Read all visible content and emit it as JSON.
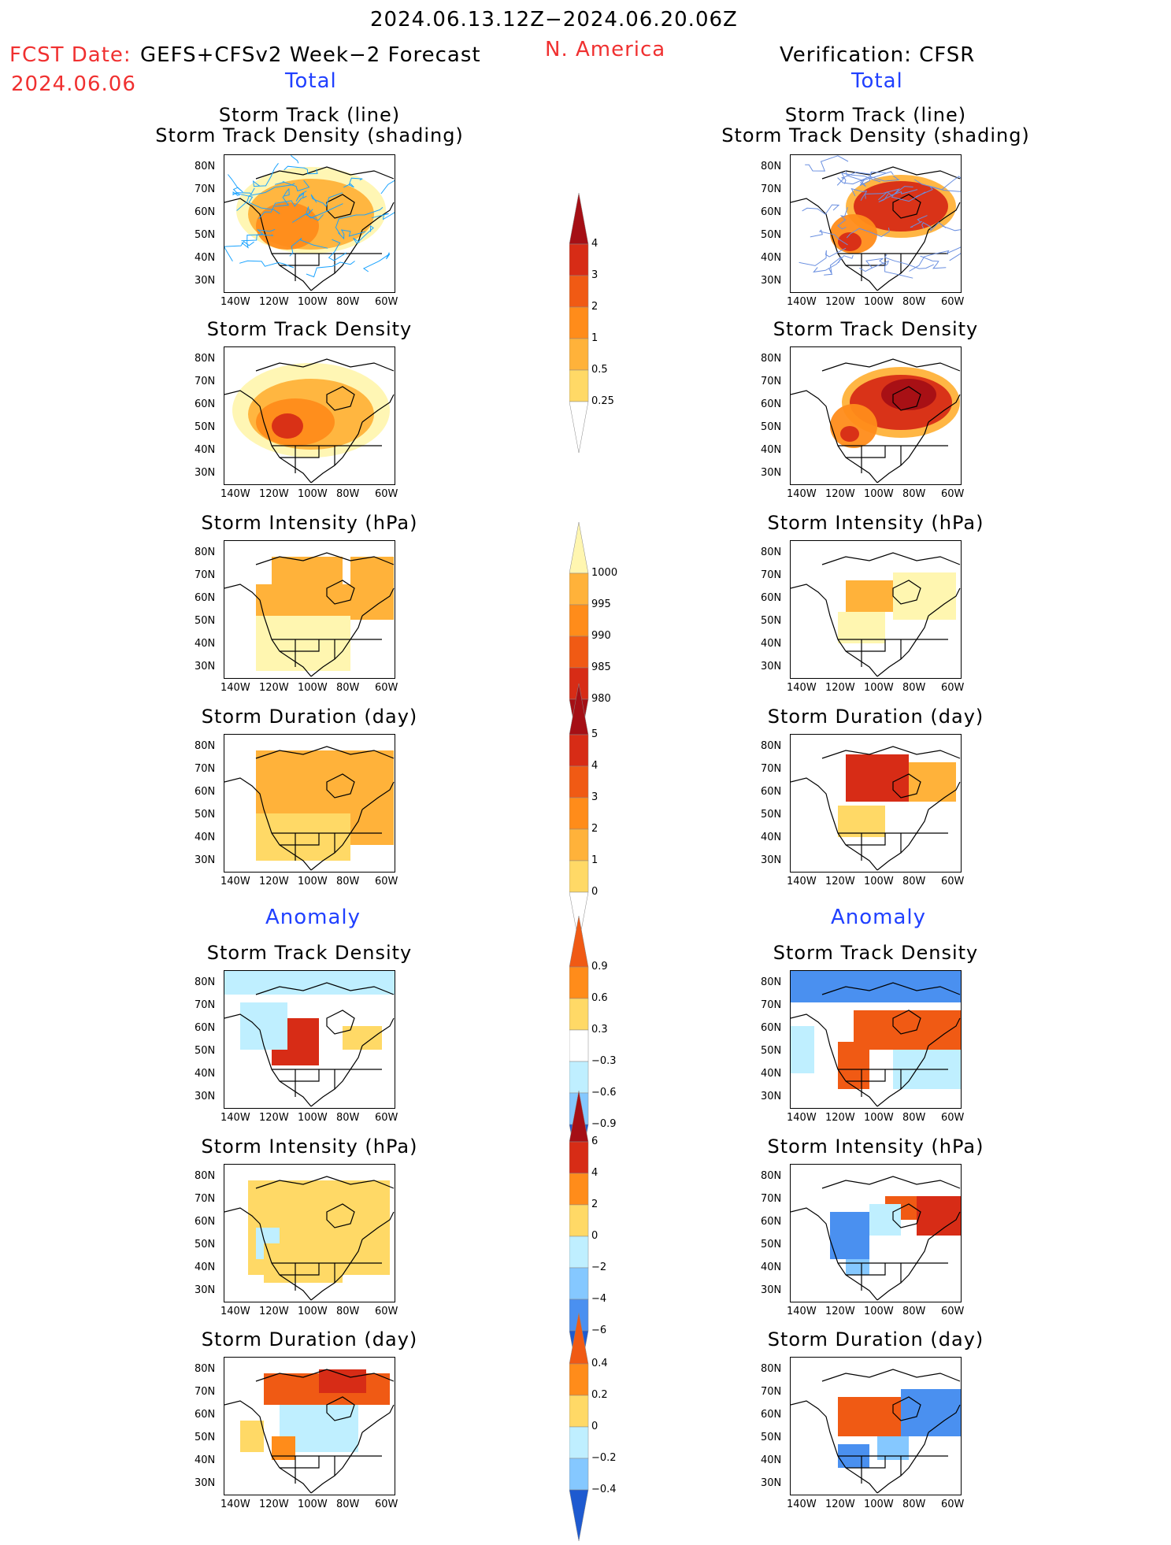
{
  "header": {
    "period": "2024.06.13.12Z−2024.06.20.06Z",
    "fcst_label": "FCST Date:",
    "model": "GEFS+CFSv2 Week−2 Forecast",
    "fcst_date": "2024.06.06",
    "region": "N. America",
    "verification": "Verification: CFSR"
  },
  "sections": {
    "total_left": "Total",
    "total_right": "Total",
    "anomaly_left": "Anomaly",
    "anomaly_right": "Anomaly"
  },
  "axes": {
    "lat_ticks": [
      "80N",
      "70N",
      "60N",
      "50N",
      "40N",
      "30N"
    ],
    "lon_ticks": [
      "140W",
      "120W",
      "100W",
      "80W",
      "60W"
    ]
  },
  "panel_titles": {
    "track_line": "Storm Track (line)",
    "track_density_shading": "Storm Track Density (shading)",
    "track_density": "Storm Track Density",
    "intensity": "Storm Intensity (hPa)",
    "duration": "Storm Duration (day)"
  },
  "colors": {
    "yellow_light": "#fff6b0",
    "yellow": "#ffd966",
    "orange_light": "#ffb23a",
    "orange": "#ff8c1a",
    "orange_red": "#f05a14",
    "red": "#d72c16",
    "dark_red": "#a50f15",
    "blue_light": "#bfefff",
    "blue_mid": "#85c8ff",
    "blue": "#4a90f0",
    "blue_dark": "#1e5ad0",
    "track_line": "#1aa3ff"
  },
  "chart_data": [
    {
      "type": "heatmap",
      "title": "Storm Track (line) / Storm Track Density (shading)",
      "panel": "forecast-total-track-line",
      "colorbar": [
        "0.25",
        "0.5",
        "1",
        "2",
        "3",
        "4"
      ]
    },
    {
      "type": "heatmap",
      "title": "Storm Track (line) / Storm Track Density (shading)",
      "panel": "verification-total-track-line"
    },
    {
      "type": "heatmap",
      "title": "Storm Track Density",
      "panel": "forecast-total-density"
    },
    {
      "type": "heatmap",
      "title": "Storm Track Density",
      "panel": "verification-total-density"
    },
    {
      "type": "heatmap",
      "title": "Storm Intensity (hPa)",
      "panel": "forecast-total-intensity",
      "colorbar": [
        "1000",
        "995",
        "990",
        "985",
        "980"
      ]
    },
    {
      "type": "heatmap",
      "title": "Storm Intensity (hPa)",
      "panel": "verification-total-intensity"
    },
    {
      "type": "heatmap",
      "title": "Storm Duration (day)",
      "panel": "forecast-total-duration",
      "colorbar": [
        "0",
        "1",
        "2",
        "3",
        "4",
        "5"
      ]
    },
    {
      "type": "heatmap",
      "title": "Storm Duration (day)",
      "panel": "verification-total-duration"
    },
    {
      "type": "heatmap",
      "title": "Storm Track Density",
      "panel": "forecast-anomaly-density",
      "colorbar": [
        "−0.9",
        "−0.6",
        "−0.3",
        "0.3",
        "0.6",
        "0.9"
      ]
    },
    {
      "type": "heatmap",
      "title": "Storm Track Density",
      "panel": "verification-anomaly-density"
    },
    {
      "type": "heatmap",
      "title": "Storm Intensity (hPa)",
      "panel": "forecast-anomaly-intensity",
      "colorbar": [
        "−6",
        "−4",
        "−2",
        "0",
        "2",
        "4",
        "6"
      ]
    },
    {
      "type": "heatmap",
      "title": "Storm Intensity (hPa)",
      "panel": "verification-anomaly-intensity"
    },
    {
      "type": "heatmap",
      "title": "Storm Duration (day)",
      "panel": "forecast-anomaly-duration",
      "colorbar": [
        "−0.4",
        "−0.2",
        "0",
        "0.2",
        "0.4"
      ]
    },
    {
      "type": "heatmap",
      "title": "Storm Duration (day)",
      "panel": "verification-anomaly-duration"
    }
  ],
  "colorbars": {
    "density": [
      "4",
      "3",
      "2",
      "1",
      "0.5",
      "0.25"
    ],
    "intensity": [
      "1000",
      "995",
      "990",
      "985",
      "980"
    ],
    "duration": [
      "5",
      "4",
      "3",
      "2",
      "1",
      "0"
    ],
    "anom_density": [
      "0.9",
      "0.6",
      "0.3",
      "−0.3",
      "−0.6",
      "−0.9"
    ],
    "anom_intensity": [
      "6",
      "4",
      "2",
      "0",
      "−2",
      "−4",
      "−6"
    ],
    "anom_duration": [
      "0.4",
      "0.2",
      "0",
      "−0.2",
      "−0.4"
    ]
  }
}
